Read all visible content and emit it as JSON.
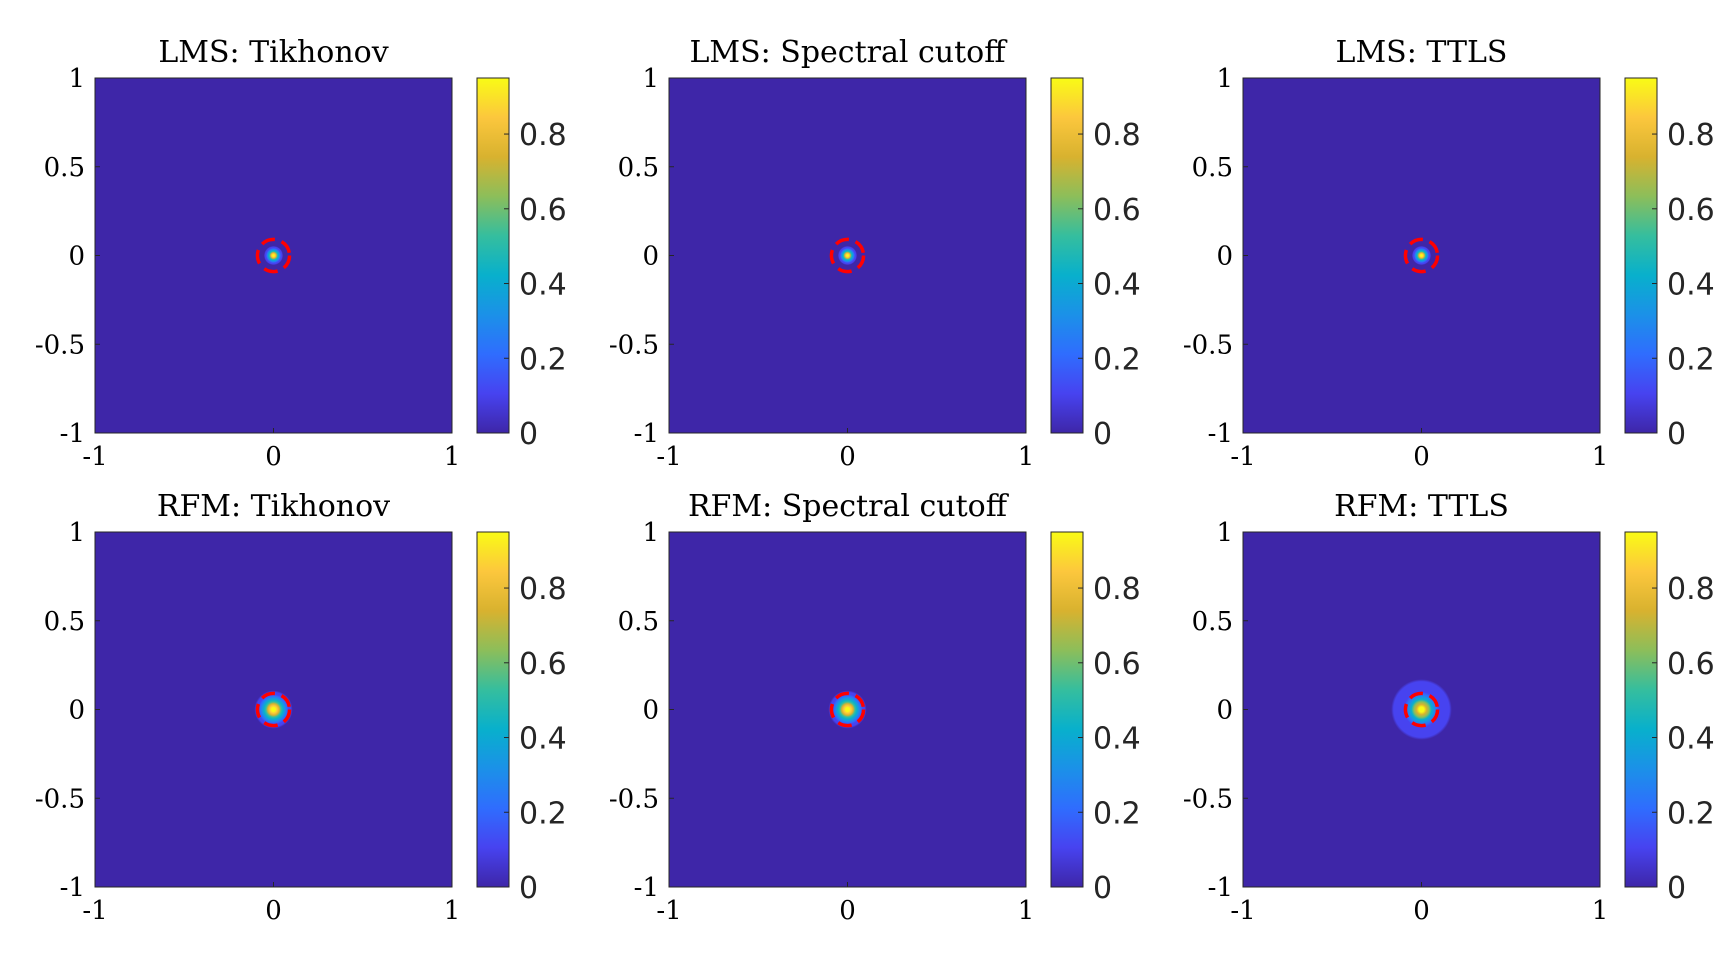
{
  "chart_data": [
    {
      "type": "heatmap",
      "title": "LMS: Tikhonov",
      "xlim": [
        -1,
        1
      ],
      "ylim": [
        -1,
        1
      ],
      "xticks": [
        "-1",
        "0",
        "1"
      ],
      "yticks": [
        "1",
        "0.5",
        "0",
        "-0.5",
        "-1"
      ],
      "colorbar": {
        "range": [
          0,
          0.95
        ],
        "ticks": [
          "0.8",
          "0.6",
          "0.4",
          "0.2",
          "0"
        ]
      },
      "peak": {
        "x": 0,
        "y": 0,
        "value": 0.95,
        "spread": 0.04
      },
      "true_circle": {
        "cx": 0,
        "cy": 0,
        "r": 0.09,
        "style": "dashed",
        "color": "#ff0000"
      }
    },
    {
      "type": "heatmap",
      "title": "LMS: Spectral cutoff",
      "xlim": [
        -1,
        1
      ],
      "ylim": [
        -1,
        1
      ],
      "xticks": [
        "-1",
        "0",
        "1"
      ],
      "yticks": [
        "1",
        "0.5",
        "0",
        "-0.5",
        "-1"
      ],
      "colorbar": {
        "range": [
          0,
          0.95
        ],
        "ticks": [
          "0.8",
          "0.6",
          "0.4",
          "0.2",
          "0"
        ]
      },
      "peak": {
        "x": 0,
        "y": 0,
        "value": 0.95,
        "spread": 0.04
      },
      "true_circle": {
        "cx": 0,
        "cy": 0,
        "r": 0.09,
        "style": "dashed",
        "color": "#ff0000"
      }
    },
    {
      "type": "heatmap",
      "title": "LMS: TTLS",
      "xlim": [
        -1,
        1
      ],
      "ylim": [
        -1,
        1
      ],
      "xticks": [
        "-1",
        "0",
        "1"
      ],
      "yticks": [
        "1",
        "0.5",
        "0",
        "-0.5",
        "-1"
      ],
      "colorbar": {
        "range": [
          0,
          0.95
        ],
        "ticks": [
          "0.8",
          "0.6",
          "0.4",
          "0.2",
          "0"
        ]
      },
      "peak": {
        "x": 0,
        "y": 0,
        "value": 0.95,
        "spread": 0.04
      },
      "true_circle": {
        "cx": 0,
        "cy": 0,
        "r": 0.09,
        "style": "dashed",
        "color": "#ff0000"
      }
    },
    {
      "type": "heatmap",
      "title": "RFM: Tikhonov",
      "xlim": [
        -1,
        1
      ],
      "ylim": [
        -1,
        1
      ],
      "xticks": [
        "-1",
        "0",
        "1"
      ],
      "yticks": [
        "1",
        "0.5",
        "0",
        "-0.5",
        "-1"
      ],
      "colorbar": {
        "range": [
          0,
          0.95
        ],
        "ticks": [
          "0.8",
          "0.6",
          "0.4",
          "0.2",
          "0"
        ]
      },
      "peak": {
        "x": 0,
        "y": 0,
        "value": 0.95,
        "spread": 0.08
      },
      "true_circle": {
        "cx": 0,
        "cy": 0,
        "r": 0.09,
        "style": "dashed",
        "color": "#ff0000"
      }
    },
    {
      "type": "heatmap",
      "title": "RFM: Spectral cutoff",
      "xlim": [
        -1,
        1
      ],
      "ylim": [
        -1,
        1
      ],
      "xticks": [
        "-1",
        "0",
        "1"
      ],
      "yticks": [
        "1",
        "0.5",
        "0",
        "-0.5",
        "-1"
      ],
      "colorbar": {
        "range": [
          0,
          0.95
        ],
        "ticks": [
          "0.8",
          "0.6",
          "0.4",
          "0.2",
          "0"
        ]
      },
      "peak": {
        "x": 0,
        "y": 0,
        "value": 0.95,
        "spread": 0.08
      },
      "true_circle": {
        "cx": 0,
        "cy": 0,
        "r": 0.09,
        "style": "dashed",
        "color": "#ff0000"
      }
    },
    {
      "type": "heatmap",
      "title": "RFM: TTLS",
      "xlim": [
        -1,
        1
      ],
      "ylim": [
        -1,
        1
      ],
      "xticks": [
        "-1",
        "0",
        "1"
      ],
      "yticks": [
        "1",
        "0.5",
        "0",
        "-0.5",
        "-1"
      ],
      "colorbar": {
        "range": [
          0,
          0.95
        ],
        "ticks": [
          "0.8",
          "0.6",
          "0.4",
          "0.2",
          "0"
        ]
      },
      "peak": {
        "x": 0,
        "y": 0,
        "value": 0.95,
        "spread": 0.09,
        "halo_radius": 0.17,
        "halo_value": 0.12
      },
      "true_circle": {
        "cx": 0,
        "cy": 0,
        "r": 0.09,
        "style": "dashed",
        "color": "#ff0000"
      }
    }
  ],
  "colors": {
    "background": "#3e26a8",
    "circle": "#ff0000",
    "parula": [
      "#3e26a8",
      "#4743f0",
      "#2f6dfe",
      "#1b91e8",
      "#08b0cc",
      "#35be9e",
      "#8cbe5a",
      "#d8b22f",
      "#fcc73d",
      "#f9fb15"
    ]
  }
}
